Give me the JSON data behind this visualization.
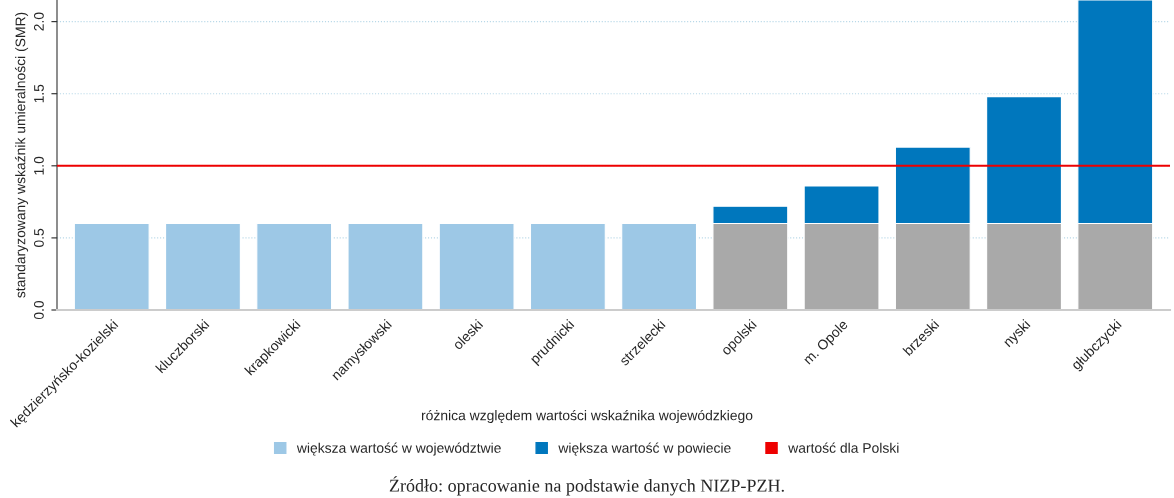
{
  "chart_data": {
    "type": "bar",
    "stacked": true,
    "categories": [
      "kędzierzyńsko-kozielski",
      "kluczborski",
      "krapkowicki",
      "namysłowski",
      "oleski",
      "prudnicki",
      "strzelecki",
      "opolski",
      "m. Opole",
      "brzeski",
      "nyski",
      "głubczycki"
    ],
    "series": [
      {
        "name": "większa wartość w województwie",
        "color": "#9dc8e6",
        "values": [
          0.6,
          0.6,
          0.6,
          0.6,
          0.6,
          0.6,
          0.6,
          null,
          null,
          null,
          null,
          null
        ]
      },
      {
        "color": "#a9a9a9",
        "values": [
          null,
          null,
          null,
          null,
          null,
          null,
          null,
          0.6,
          0.6,
          0.6,
          0.6,
          0.6
        ]
      },
      {
        "name": "większa wartość w powiecie",
        "color": "#0077bd",
        "values": [
          null,
          null,
          null,
          null,
          null,
          null,
          null,
          0.12,
          0.26,
          0.53,
          0.88,
          1.55
        ]
      }
    ],
    "ylabel": "standaryzowany wskaźnik umieralności (SMR)",
    "ylim": [
      0,
      2.15
    ],
    "yticks": [
      {
        "value": 0,
        "label": "0.0"
      },
      {
        "value": 0.5,
        "label": "0.5"
      },
      {
        "value": 1,
        "label": "1.0"
      },
      {
        "value": 1.5,
        "label": "1.5"
      },
      {
        "value": 2,
        "label": "2.0"
      }
    ],
    "ref_lines": [
      {
        "axis": "y",
        "value": 1,
        "label": "wartość dla Polski",
        "color": "#ee0000"
      }
    ],
    "grid": "y",
    "legend": "bottom",
    "legend_title": "różnica względem wartości wskaźnika wojewódzkiego",
    "annotations": [
      "Źródło: opracowanie na podstawie danych NIZP-PZH."
    ]
  }
}
